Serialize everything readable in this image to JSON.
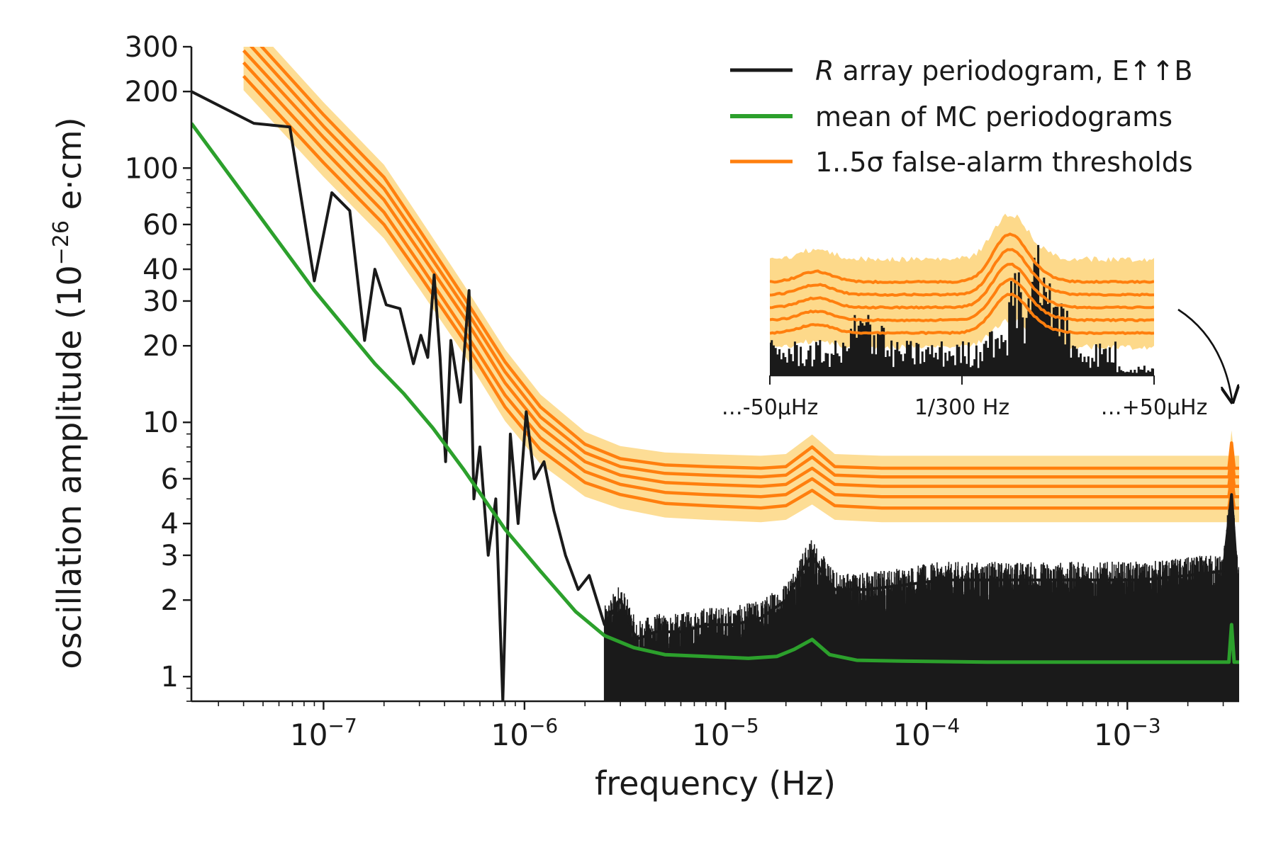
{
  "chart_data": {
    "type": "line",
    "xlabel": "frequency (Hz)",
    "ylabel_main": "oscillation amplitude (10",
    "ylabel_exp": "−26",
    "ylabel_tail": " e·cm)",
    "x_scale": "log",
    "y_scale": "log",
    "xlim": [
      2.2e-08,
      0.0036
    ],
    "ylim": [
      0.8,
      300
    ],
    "grid": false,
    "legend_placement": "top-right",
    "x_ticks": [
      {
        "value": 1e-07,
        "base": "10",
        "exp": "−7"
      },
      {
        "value": 1e-06,
        "base": "10",
        "exp": "−6"
      },
      {
        "value": 1e-05,
        "base": "10",
        "exp": "−5"
      },
      {
        "value": 0.0001,
        "base": "10",
        "exp": "−4"
      },
      {
        "value": 0.001,
        "base": "10",
        "exp": "−3"
      }
    ],
    "y_ticks": [
      {
        "value": 1,
        "label": "1"
      },
      {
        "value": 2,
        "label": "2"
      },
      {
        "value": 3,
        "label": "3"
      },
      {
        "value": 4,
        "label": "4"
      },
      {
        "value": 6,
        "label": "6"
      },
      {
        "value": 10,
        "label": "10"
      },
      {
        "value": 20,
        "label": "20"
      },
      {
        "value": 30,
        "label": "30"
      },
      {
        "value": 40,
        "label": "40"
      },
      {
        "value": 60,
        "label": "60"
      },
      {
        "value": 100,
        "label": "100"
      },
      {
        "value": 200,
        "label": "200"
      },
      {
        "value": 300,
        "label": "300"
      }
    ],
    "legend": [
      {
        "series": "periodogram",
        "italic": "R",
        "label": " array periodogram, E↑↑B",
        "color": "#1a1a1a"
      },
      {
        "series": "mc_mean",
        "italic": "",
        "label": "mean of MC periodograms",
        "color": "#2ca02c"
      },
      {
        "series": "thresholds",
        "italic": "",
        "label": "1..5σ false-alarm thresholds",
        "color": "#ff7f0e"
      }
    ],
    "colors": {
      "periodogram": "#1a1a1a",
      "mc_mean": "#2ca02c",
      "threshold": "#ff7f0e",
      "threshold_band": "#fdd98a"
    },
    "series": [
      {
        "name": "R array periodogram, E↑↑B",
        "x": [
          2.2e-08,
          4.5e-08,
          6.8e-08,
          9e-08,
          1.1e-07,
          1.35e-07,
          1.6e-07,
          1.8e-07,
          2.05e-07,
          2.4e-07,
          2.8e-07,
          3.05e-07,
          3.3e-07,
          3.55e-07,
          3.8e-07,
          4.05e-07,
          4.3e-07,
          4.8e-07,
          5.3e-07,
          5.6e-07,
          6e-07,
          6.6e-07,
          7.2e-07,
          7.8e-07,
          8.5e-07,
          9.3e-07,
          1.02e-06,
          1.12e-06,
          1.25e-06,
          1.4e-06,
          1.6e-06,
          1.85e-06,
          2.1e-06,
          2.5e-06,
          3e-06,
          3.6e-06,
          4.5e-06,
          6e-06,
          8e-06,
          1.1e-05,
          1.5e-05,
          2e-05,
          2.4e-05,
          2.7e-05,
          3e-05,
          3.5e-05,
          5e-05,
          8e-05,
          0.00012,
          0.0002,
          0.0003,
          0.0005,
          0.0008,
          0.0012,
          0.002,
          0.003,
          0.0033,
          0.0035
        ],
        "y": [
          200,
          150,
          145,
          36,
          80,
          68,
          21,
          40,
          29,
          28,
          17,
          22,
          18,
          38,
          18,
          7,
          21,
          12,
          33,
          5,
          8,
          3,
          5,
          0.8,
          9,
          4,
          11,
          6,
          7,
          4.5,
          3,
          2.2,
          2.5,
          1.6,
          2,
          1.4,
          1.5,
          1.5,
          1.6,
          1.6,
          1.7,
          2,
          2.6,
          3,
          2.6,
          2.2,
          2.2,
          2.3,
          2.4,
          2.4,
          2.4,
          2.4,
          2.4,
          2.4,
          2.5,
          2.6,
          5.2,
          2.6
        ]
      },
      {
        "name": "mean of MC periodograms",
        "x": [
          2.2e-08,
          9e-08,
          1.8e-07,
          2.5e-07,
          3.5e-07,
          5e-07,
          8e-07,
          1.2e-06,
          1.8e-06,
          2.5e-06,
          3.5e-06,
          5e-06,
          8e-06,
          1.3e-05,
          1.8e-05,
          2.2e-05,
          2.7e-05,
          3.3e-05,
          4.5e-05,
          8e-05,
          0.0002,
          0.0005,
          0.001,
          0.002,
          0.0032,
          0.0033,
          0.0034,
          0.0036
        ],
        "y": [
          150,
          33,
          17,
          13,
          9.5,
          6.5,
          3.8,
          2.6,
          1.8,
          1.45,
          1.3,
          1.22,
          1.2,
          1.18,
          1.2,
          1.28,
          1.4,
          1.22,
          1.16,
          1.15,
          1.14,
          1.14,
          1.14,
          1.14,
          1.14,
          1.6,
          1.14,
          1.14
        ]
      },
      {
        "name": "1..5σ false-alarm thresholds",
        "levels": [
          "1σ",
          "2σ",
          "3σ",
          "4σ",
          "5σ"
        ],
        "x": [
          4e-08,
          1e-07,
          2e-07,
          3e-07,
          5e-07,
          8e-07,
          1.2e-06,
          2e-06,
          3e-06,
          5e-06,
          8e-06,
          1.5e-05,
          2e-05,
          2.7e-05,
          3.5e-05,
          6e-05,
          0.0002,
          0.001,
          0.0032,
          0.0033,
          0.0034,
          0.0036
        ],
        "y_levels": [
          [
            230,
            105,
            60,
            38,
            21,
            11.5,
            7.8,
            5.8,
            5.2,
            4.8,
            4.7,
            4.6,
            4.7,
            5.4,
            4.7,
            4.6,
            4.6,
            4.6,
            4.6,
            5.5,
            4.6,
            4.6
          ],
          [
            260,
            118,
            67,
            42,
            23,
            12.8,
            8.7,
            6.4,
            5.7,
            5.3,
            5.2,
            5.1,
            5.2,
            6,
            5.2,
            5.1,
            5.1,
            5.1,
            5.1,
            6.2,
            5.1,
            5.1
          ],
          [
            290,
            132,
            75,
            47,
            26,
            14.3,
            9.6,
            7,
            6.2,
            5.8,
            5.7,
            5.6,
            5.7,
            6.6,
            5.7,
            5.6,
            5.6,
            5.6,
            5.6,
            6.9,
            5.6,
            5.6
          ],
          [
            325,
            146,
            83,
            52,
            28.5,
            15.8,
            10.5,
            7.6,
            6.7,
            6.3,
            6.2,
            6.1,
            6.2,
            7.3,
            6.2,
            6.1,
            6.1,
            6.1,
            6.1,
            7.6,
            6.1,
            6.1
          ],
          [
            360,
            162,
            92,
            57,
            31,
            17.3,
            11.5,
            8.2,
            7.2,
            6.8,
            6.7,
            6.6,
            6.7,
            8,
            6.7,
            6.6,
            6.6,
            6.6,
            6.6,
            8.3,
            6.6,
            6.6
          ]
        ]
      }
    ],
    "inset": {
      "tick_labels": [
        "…-50μHz",
        "1/300 Hz",
        "…+50μHz"
      ],
      "description_arrow": "points to peak at right edge"
    }
  }
}
